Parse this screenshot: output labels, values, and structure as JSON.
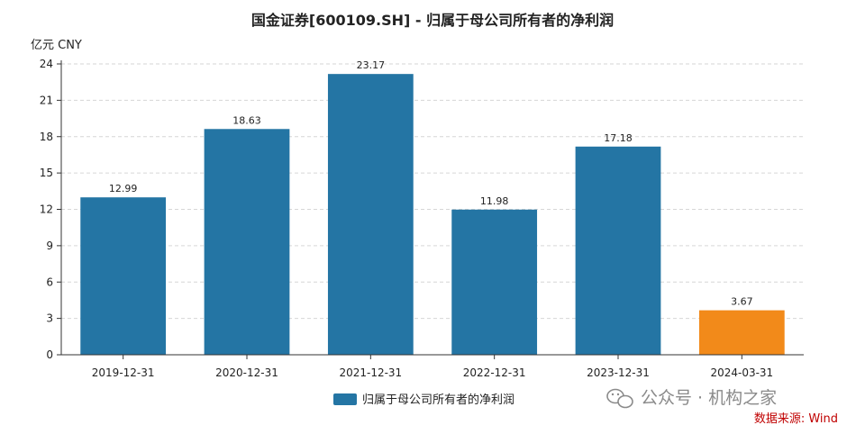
{
  "chart_data": {
    "type": "bar",
    "title": "国金证券[600109.SH] - 归属于母公司所有者的净利润",
    "ylabel": "亿元  CNY",
    "categories": [
      "2019-12-31",
      "2020-12-31",
      "2021-12-31",
      "2022-12-31",
      "2023-12-31",
      "2024-03-31"
    ],
    "series": [
      {
        "name": "归属于母公司所有者的净利润",
        "values": [
          12.99,
          18.63,
          23.17,
          11.98,
          17.18,
          3.67
        ]
      }
    ],
    "data_labels": [
      "12.99",
      "18.63",
      "23.17",
      "11.98",
      "17.18",
      "3.67"
    ],
    "bar_colors": [
      "#2475a4",
      "#2475a4",
      "#2475a4",
      "#2475a4",
      "#2475a4",
      "#f28a1a"
    ],
    "ylim": [
      0,
      24
    ],
    "yticks": [
      0,
      3,
      6,
      9,
      12,
      15,
      18,
      21,
      24
    ],
    "grid": true,
    "legend_position": "bottom-center",
    "source": "数据来源: Wind",
    "watermark": "公众号 · 机构之家"
  }
}
